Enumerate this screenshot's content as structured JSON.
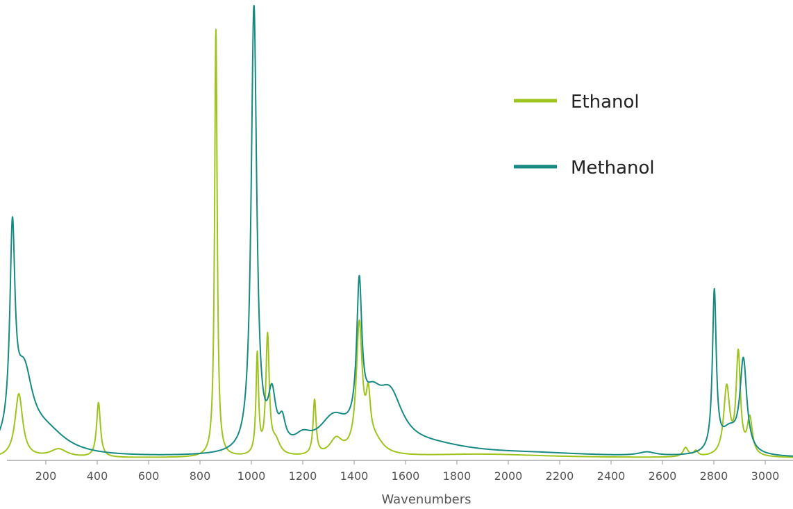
{
  "chart_data": {
    "type": "line",
    "xlabel": "Wavenumbers",
    "ylabel": "",
    "xlim": [
      20,
      3150
    ],
    "ylim": [
      0,
      100
    ],
    "x_ticks": [
      200,
      400,
      600,
      800,
      1000,
      1200,
      1400,
      1600,
      1800,
      2000,
      2200,
      2400,
      2600,
      2800,
      3000
    ],
    "grid": false,
    "legend": {
      "position": "top-right",
      "entries": [
        {
          "label": "Ethanol",
          "color": "#9dc41c"
        },
        {
          "label": "Methanol",
          "color": "#168a82"
        }
      ]
    },
    "series": [
      {
        "name": "Ethanol",
        "color": "#9dc41c",
        "baseline": 0.5,
        "peaks": [
          [
            95,
            14,
            18
          ],
          [
            250,
            1.8,
            40
          ],
          [
            405,
            12,
            9
          ],
          [
            862,
            94,
            6
          ],
          [
            1023,
            22,
            6
          ],
          [
            1063,
            26,
            8
          ],
          [
            1095,
            3,
            20
          ],
          [
            1246,
            12,
            7
          ],
          [
            1330,
            3.5,
            30
          ],
          [
            1420,
            28,
            14
          ],
          [
            1455,
            10,
            10
          ],
          [
            1480,
            3,
            40
          ],
          [
            1900,
            0.8,
            300
          ],
          [
            2690,
            2,
            12
          ],
          [
            2730,
            1.2,
            10
          ],
          [
            2850,
            15,
            14
          ],
          [
            2895,
            22,
            10
          ],
          [
            2940,
            8,
            12
          ]
        ]
      },
      {
        "name": "Methanol",
        "color": "#168a82",
        "baseline": 0.5,
        "peaks": [
          [
            70,
            44,
            12
          ],
          [
            115,
            16,
            40
          ],
          [
            200,
            5,
            100
          ],
          [
            1010,
            98,
            13
          ],
          [
            1080,
            11,
            18
          ],
          [
            1120,
            5,
            15
          ],
          [
            1200,
            2.5,
            40
          ],
          [
            1320,
            7,
            70
          ],
          [
            1420,
            31,
            12
          ],
          [
            1470,
            8,
            45
          ],
          [
            1540,
            11,
            60
          ],
          [
            1700,
            2,
            200
          ],
          [
            2100,
            0.7,
            300
          ],
          [
            2540,
            0.8,
            40
          ],
          [
            2802,
            35,
            9
          ],
          [
            2860,
            5,
            40
          ],
          [
            2915,
            20,
            16
          ]
        ]
      }
    ]
  }
}
